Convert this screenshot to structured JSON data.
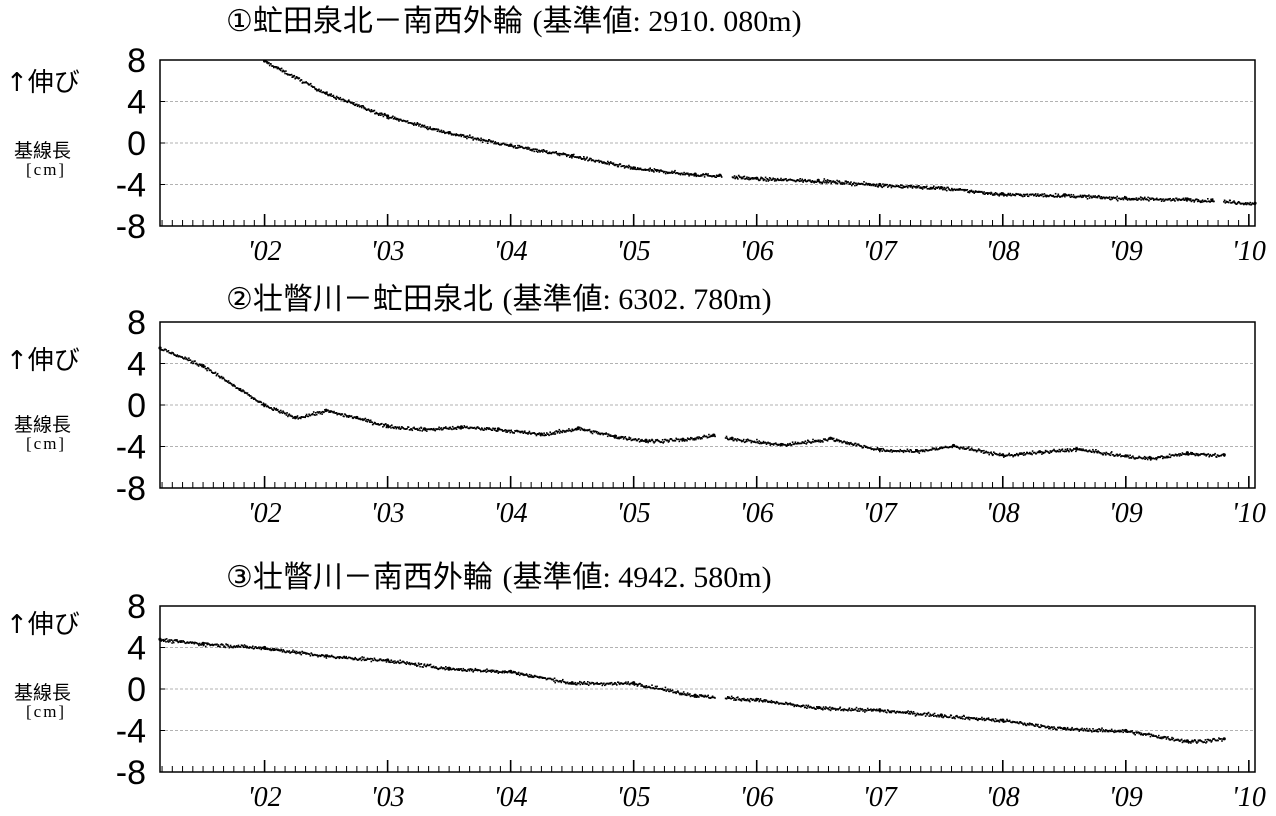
{
  "ylabel_up": "↑伸び",
  "ylabel_baseline": "基線長",
  "ylabel_unit": "[cm]",
  "chart_data": [
    {
      "type": "scatter",
      "title": "①虻田泉北－南西外輪",
      "reference": "(基準値: 2910. 080m)",
      "xlim": [
        2001.15,
        2010.05
      ],
      "ylim": [
        -8,
        8
      ],
      "yticks": [
        "8",
        "4",
        "0",
        "-4",
        "-8"
      ],
      "xticks": [
        "'02",
        "'03",
        "'04",
        "'05",
        "'06",
        "'07",
        "'08",
        "'09",
        "'10"
      ],
      "grid": true,
      "x": [
        2002.0,
        2002.5,
        2003.0,
        2003.5,
        2004.0,
        2004.5,
        2005.0,
        2005.5,
        2005.7,
        2006.0,
        2006.5,
        2007.0,
        2007.5,
        2008.0,
        2008.5,
        2009.0,
        2009.5,
        2009.7,
        2010.05
      ],
      "y": [
        7.9,
        4.8,
        2.6,
        1.0,
        -0.2,
        -1.2,
        -2.4,
        -3.0,
        -3.1,
        -3.4,
        -3.6,
        -4.0,
        -4.3,
        -4.9,
        -5.0,
        -5.3,
        -5.4,
        -5.5,
        -5.8
      ],
      "gaps": [
        2005.75,
        2009.75
      ]
    },
    {
      "type": "scatter",
      "title": "②壮瞥川－虻田泉北",
      "reference": "(基準値: 6302. 780m)",
      "xlim": [
        2001.15,
        2010.05
      ],
      "ylim": [
        -8,
        8
      ],
      "yticks": [
        "8",
        "4",
        "0",
        "-4",
        "-8"
      ],
      "xticks": [
        "'02",
        "'03",
        "'04",
        "'05",
        "'06",
        "'07",
        "'08",
        "'09",
        "'10"
      ],
      "grid": true,
      "x": [
        2001.15,
        2001.5,
        2001.8,
        2002.0,
        2002.25,
        2002.5,
        2002.75,
        2003.0,
        2003.3,
        2003.6,
        2003.9,
        2004.25,
        2004.55,
        2004.85,
        2005.1,
        2005.4,
        2005.65,
        2005.8,
        2006.2,
        2006.6,
        2007.0,
        2007.3,
        2007.6,
        2008.0,
        2008.3,
        2008.6,
        2009.0,
        2009.2,
        2009.5,
        2009.8
      ],
      "y": [
        5.5,
        3.8,
        1.5,
        0.0,
        -1.2,
        -0.5,
        -1.2,
        -2.0,
        -2.3,
        -2.1,
        -2.3,
        -2.8,
        -2.2,
        -3.0,
        -3.4,
        -3.3,
        -2.9,
        -3.2,
        -3.8,
        -3.2,
        -4.3,
        -4.4,
        -3.9,
        -4.8,
        -4.5,
        -4.2,
        -4.9,
        -5.1,
        -4.6,
        -4.8
      ],
      "gaps": [
        2005.7
      ]
    },
    {
      "type": "scatter",
      "title": "③壮瞥川－南西外輪",
      "reference": "(基準値: 4942. 580m)",
      "xlim": [
        2001.15,
        2010.05
      ],
      "ylim": [
        -8,
        8
      ],
      "yticks": [
        "8",
        "4",
        "0",
        "-4",
        "-8"
      ],
      "xticks": [
        "'02",
        "'03",
        "'04",
        "'05",
        "'06",
        "'07",
        "'08",
        "'09",
        "'10"
      ],
      "grid": true,
      "x": [
        2001.15,
        2001.5,
        2002.0,
        2002.5,
        2003.0,
        2003.5,
        2004.0,
        2004.5,
        2005.0,
        2005.5,
        2006.0,
        2006.5,
        2007.0,
        2007.5,
        2008.0,
        2008.5,
        2009.0,
        2009.5,
        2009.8
      ],
      "y": [
        4.8,
        4.4,
        4.0,
        3.2,
        2.8,
        2.0,
        1.7,
        0.6,
        0.6,
        -0.6,
        -1.0,
        -1.8,
        -2.0,
        -2.5,
        -3.0,
        -3.8,
        -4.0,
        -5.0,
        -4.8
      ],
      "gaps": [
        2005.7
      ]
    }
  ]
}
